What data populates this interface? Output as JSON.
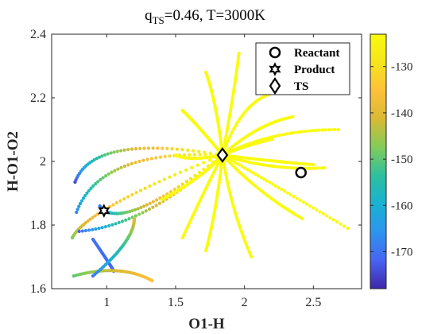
{
  "chart_data": {
    "type": "scatter",
    "title": {
      "q_symbol": "q",
      "q_sub": "TS",
      "rest": "=0.46, T=3000K"
    },
    "xlabel": "O1-H",
    "ylabel": "H-O1-O2",
    "xlim": [
      0.6,
      2.85
    ],
    "ylim": [
      1.6,
      2.4
    ],
    "xticks": [
      1,
      1.5,
      2,
      2.5
    ],
    "yticks": [
      1.6,
      1.8,
      2,
      2.2,
      2.4
    ],
    "xtick_labels": [
      "1",
      "1.5",
      "2",
      "2.5"
    ],
    "ytick_labels": [
      "1.6",
      "1.8",
      "2",
      "2.2",
      "2.4"
    ],
    "colorbar": {
      "range": [
        -178,
        -123
      ],
      "ticks": [
        -130,
        -140,
        -150,
        -160,
        -170
      ],
      "tick_labels": [
        "-130",
        "-140",
        "-150",
        "-160",
        "-170"
      ],
      "colormap": [
        "#3e26a8",
        "#4764f2",
        "#2c95f0",
        "#19b2d3",
        "#2dc09e",
        "#81cc59",
        "#d9ba33",
        "#fdc03a",
        "#f5e51a",
        "#f9fb0e"
      ]
    },
    "legend": {
      "position": "top-right",
      "items": [
        {
          "label": "Reactant",
          "marker": "circle"
        },
        {
          "label": "Product",
          "marker": "hexagram"
        },
        {
          "label": "TS",
          "marker": "diamond"
        }
      ]
    },
    "points": {
      "reactant": {
        "x": 2.41,
        "y": 1.965
      },
      "product": {
        "x": 0.98,
        "y": 1.845
      },
      "ts": {
        "x": 1.84,
        "y": 2.02
      }
    },
    "trajectories": [
      {
        "start": [
          0.77,
          1.935
        ],
        "ctrl": [
          0.9,
          2.09
        ],
        "end": [
          1.84,
          2.02
        ],
        "e0": -175,
        "e1": -123
      },
      {
        "start": [
          0.78,
          1.84
        ],
        "ctrl": [
          0.95,
          2.04
        ],
        "end": [
          1.84,
          2.02
        ],
        "e0": -168,
        "e1": -123
      },
      {
        "start": [
          0.75,
          1.76
        ],
        "ctrl": [
          0.85,
          1.85
        ],
        "end": [
          1.84,
          2.02
        ],
        "e0": -148,
        "e1": -123
      },
      {
        "start": [
          0.95,
          1.86
        ],
        "ctrl": [
          1.1,
          1.77
        ],
        "end": [
          1.84,
          2.02
        ],
        "e0": -170,
        "e1": -123
      },
      {
        "start": [
          0.8,
          1.78
        ],
        "ctrl": [
          1.3,
          1.8
        ],
        "end": [
          1.84,
          2.02
        ],
        "e0": -172,
        "e1": -123
      },
      {
        "start": [
          0.9,
          1.755
        ],
        "ctrl": [
          1.05,
          1.66
        ],
        "end": [
          1.05,
          1.655
        ],
        "e0": -170,
        "e1": -172
      },
      {
        "start": [
          0.76,
          1.64
        ],
        "ctrl": [
          1.1,
          1.68
        ],
        "end": [
          1.33,
          1.625
        ],
        "e0": -150,
        "e1": -135
      },
      {
        "start": [
          0.9,
          1.64
        ],
        "ctrl": [
          1.2,
          1.75
        ],
        "end": [
          1.2,
          1.82
        ],
        "e0": -170,
        "e1": -140
      },
      {
        "start": [
          1.84,
          2.02
        ],
        "ctrl": [
          1.92,
          2.2
        ],
        "end": [
          1.96,
          2.34
        ],
        "e0": -123,
        "e1": -123
      },
      {
        "start": [
          1.84,
          2.02
        ],
        "ctrl": [
          1.8,
          2.18
        ],
        "end": [
          1.72,
          2.28
        ],
        "e0": -123,
        "e1": -123
      },
      {
        "start": [
          1.84,
          2.02
        ],
        "ctrl": [
          2.0,
          2.22
        ],
        "end": [
          2.3,
          2.22
        ],
        "e0": -123,
        "e1": -123
      },
      {
        "start": [
          1.84,
          2.02
        ],
        "ctrl": [
          2.2,
          2.1
        ],
        "end": [
          2.68,
          2.1
        ],
        "e0": -123,
        "e1": -123
      },
      {
        "start": [
          1.84,
          2.02
        ],
        "ctrl": [
          2.1,
          2.12
        ],
        "end": [
          2.35,
          2.14
        ],
        "e0": -123,
        "e1": -123
      },
      {
        "start": [
          1.84,
          2.02
        ],
        "ctrl": [
          2.2,
          2.0
        ],
        "end": [
          2.5,
          1.99
        ],
        "e0": -123,
        "e1": -123
      },
      {
        "start": [
          1.84,
          2.02
        ],
        "ctrl": [
          2.2,
          1.97
        ],
        "end": [
          2.58,
          1.98
        ],
        "e0": -123,
        "e1": -123
      },
      {
        "start": [
          1.84,
          2.02
        ],
        "ctrl": [
          2.2,
          1.93
        ],
        "end": [
          2.75,
          1.79
        ],
        "e0": -123,
        "e1": -123
      },
      {
        "start": [
          1.84,
          2.02
        ],
        "ctrl": [
          2.1,
          1.9
        ],
        "end": [
          2.42,
          1.82
        ],
        "e0": -123,
        "e1": -123
      },
      {
        "start": [
          1.84,
          2.02
        ],
        "ctrl": [
          1.9,
          1.85
        ],
        "end": [
          2.05,
          1.7
        ],
        "e0": -123,
        "e1": -123
      },
      {
        "start": [
          1.84,
          2.02
        ],
        "ctrl": [
          1.8,
          1.85
        ],
        "end": [
          1.72,
          1.72
        ],
        "e0": -123,
        "e1": -123
      },
      {
        "start": [
          1.84,
          2.02
        ],
        "ctrl": [
          1.7,
          1.9
        ],
        "end": [
          1.55,
          1.76
        ],
        "e0": -123,
        "e1": -123
      },
      {
        "start": [
          1.84,
          2.02
        ],
        "ctrl": [
          1.6,
          2.0
        ],
        "end": [
          1.5,
          2.02
        ],
        "e0": -123,
        "e1": -123
      },
      {
        "start": [
          1.84,
          2.02
        ],
        "ctrl": [
          1.65,
          2.12
        ],
        "end": [
          1.55,
          2.16
        ],
        "e0": -123,
        "e1": -123
      },
      {
        "start": [
          1.84,
          2.02
        ],
        "ctrl": [
          1.7,
          1.95
        ],
        "end": [
          1.4,
          1.88
        ],
        "e0": -123,
        "e1": -123
      },
      {
        "start": [
          1.84,
          2.02
        ],
        "ctrl": [
          2.0,
          2.05
        ],
        "end": [
          2.2,
          2.07
        ],
        "e0": -123,
        "e1": -123
      }
    ]
  }
}
